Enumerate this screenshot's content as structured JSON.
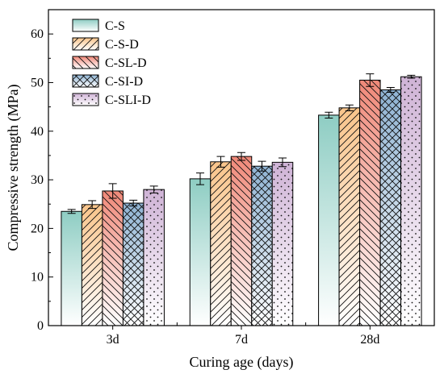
{
  "chart_data": {
    "type": "bar",
    "categories": [
      "3d",
      "7d",
      "28d"
    ],
    "xlabel": "Curing age (days)",
    "ylabel": "Compressive strength (MPa)",
    "ylim": [
      0,
      65
    ],
    "yticks": [
      0,
      10,
      20,
      30,
      40,
      50,
      60
    ],
    "grid": false,
    "legend_position": "top-left",
    "series": [
      {
        "name": "C-S",
        "values": [
          23.5,
          30.2,
          43.3
        ],
        "errors": [
          0.4,
          1.2,
          0.6
        ],
        "color": "#8ecdc3",
        "pattern": "none"
      },
      {
        "name": "C-S-D",
        "values": [
          24.9,
          33.7,
          44.8
        ],
        "errors": [
          0.8,
          1.1,
          0.6
        ],
        "color": "#f9c48a",
        "pattern": "slash"
      },
      {
        "name": "C-SL-D",
        "values": [
          27.7,
          34.8,
          50.5
        ],
        "errors": [
          1.5,
          0.8,
          1.3
        ],
        "color": "#f08878",
        "pattern": "backslash"
      },
      {
        "name": "C-SI-D",
        "values": [
          25.2,
          32.8,
          48.5
        ],
        "errors": [
          0.6,
          1.0,
          0.5
        ],
        "color": "#8fb3d3",
        "pattern": "cross"
      },
      {
        "name": "C-SLI-D",
        "values": [
          28.0,
          33.6,
          51.2
        ],
        "errors": [
          0.7,
          0.9,
          0.3
        ],
        "color": "#cfb3d6",
        "pattern": "dots"
      }
    ]
  }
}
